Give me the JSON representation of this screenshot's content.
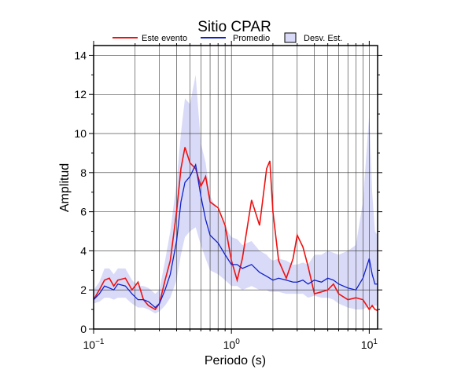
{
  "chart_data": {
    "type": "line",
    "title": "Sitio CPAR",
    "xlabel": "Periodo (s)",
    "ylabel": "Amplitud",
    "xscale": "log",
    "xlim": [
      0.1,
      11.5
    ],
    "ylim": [
      0,
      14.5
    ],
    "xticks": [
      {
        "value": 0.1,
        "label": "10",
        "exponent": "−1"
      },
      {
        "value": 1,
        "label": "10",
        "exponent": "0"
      },
      {
        "value": 10,
        "label": "10",
        "exponent": "1"
      }
    ],
    "xminor": [
      0.2,
      0.3,
      0.4,
      0.5,
      0.6,
      0.7,
      0.8,
      0.9,
      2,
      3,
      4,
      5,
      6,
      7,
      8,
      9
    ],
    "yticks": [
      0,
      2,
      4,
      6,
      8,
      10,
      12,
      14
    ],
    "yminor": [
      1,
      3,
      5,
      7,
      9,
      11,
      13
    ],
    "grid": true,
    "legend": "top",
    "x": [
      0.1,
      0.11,
      0.12,
      0.13,
      0.14,
      0.15,
      0.17,
      0.19,
      0.21,
      0.23,
      0.25,
      0.28,
      0.3,
      0.33,
      0.36,
      0.4,
      0.43,
      0.46,
      0.5,
      0.55,
      0.6,
      0.65,
      0.7,
      0.8,
      0.9,
      1.0,
      1.1,
      1.2,
      1.4,
      1.6,
      1.8,
      1.9,
      2.0,
      2.2,
      2.5,
      2.8,
      3.0,
      3.3,
      3.6,
      4.0,
      4.5,
      5.0,
      5.5,
      6,
      7,
      8,
      9,
      10,
      10.5,
      11,
      11.5
    ],
    "series": [
      {
        "name": "Este evento",
        "color": "#ee1111",
        "values": [
          1.5,
          2.0,
          2.5,
          2.6,
          2.2,
          2.5,
          2.6,
          2.0,
          2.4,
          1.5,
          1.2,
          1.0,
          1.3,
          2.5,
          3.5,
          6,
          8.2,
          9.3,
          8.5,
          8.2,
          7.3,
          7.8,
          6.5,
          6.2,
          5.3,
          3.5,
          2.5,
          3.6,
          6.6,
          5.3,
          8.2,
          8.6,
          6.0,
          3.5,
          2.6,
          3.6,
          4.8,
          4.2,
          3.2,
          1.8,
          1.9,
          2.0,
          2.3,
          1.8,
          1.5,
          1.6,
          1.5,
          1.0,
          1.2,
          1.0,
          0.95
        ]
      },
      {
        "name": "Promedio",
        "color": "#1122cc",
        "values": [
          1.5,
          1.8,
          2.2,
          2.1,
          2.0,
          2.3,
          2.2,
          1.8,
          1.5,
          1.5,
          1.4,
          1.1,
          1.3,
          2.0,
          2.8,
          4.5,
          6.5,
          7.5,
          7.8,
          8.4,
          6.8,
          5.6,
          4.8,
          4.4,
          3.8,
          3.3,
          3.3,
          3.1,
          3.3,
          2.9,
          2.7,
          2.6,
          2.5,
          2.6,
          2.5,
          2.4,
          2.4,
          2.5,
          2.3,
          2.5,
          2.4,
          2.6,
          2.5,
          2.3,
          2.1,
          2.0,
          2.6,
          3.6,
          2.8,
          2.3,
          2.3
        ]
      },
      {
        "name": "Desv. Est.",
        "color": "#d9daf7",
        "lower": [
          1.3,
          1.4,
          1.6,
          1.6,
          1.5,
          1.6,
          1.6,
          1.3,
          1.1,
          1.1,
          1.0,
          0.8,
          0.9,
          1.2,
          1.6,
          2.5,
          3.8,
          4.7,
          5.0,
          5.2,
          4.3,
          3.6,
          3.0,
          2.8,
          2.5,
          2.2,
          2.2,
          2.0,
          2.2,
          2.0,
          2.0,
          1.9,
          1.9,
          1.9,
          1.8,
          1.8,
          1.8,
          1.8,
          1.6,
          1.7,
          1.6,
          1.6,
          1.5,
          1.3,
          1.1,
          1.0,
          1.0,
          1.2,
          1.1,
          1.2,
          1.2
        ],
        "upper": [
          2.0,
          2.4,
          3.1,
          3.1,
          2.8,
          3.1,
          3.1,
          2.5,
          2.2,
          2.2,
          2.1,
          1.8,
          2.0,
          3.5,
          5.0,
          7.5,
          10,
          11.8,
          11.5,
          13.0,
          9.5,
          8.5,
          6.8,
          6.0,
          5.2,
          4.7,
          4.6,
          4.3,
          4.5,
          4.0,
          3.8,
          3.6,
          3.5,
          3.6,
          3.5,
          3.3,
          3.3,
          3.4,
          3.3,
          3.8,
          3.8,
          4.0,
          3.9,
          3.8,
          4.0,
          4.3,
          6.5,
          11,
          7,
          5,
          4.8
        ]
      }
    ]
  }
}
